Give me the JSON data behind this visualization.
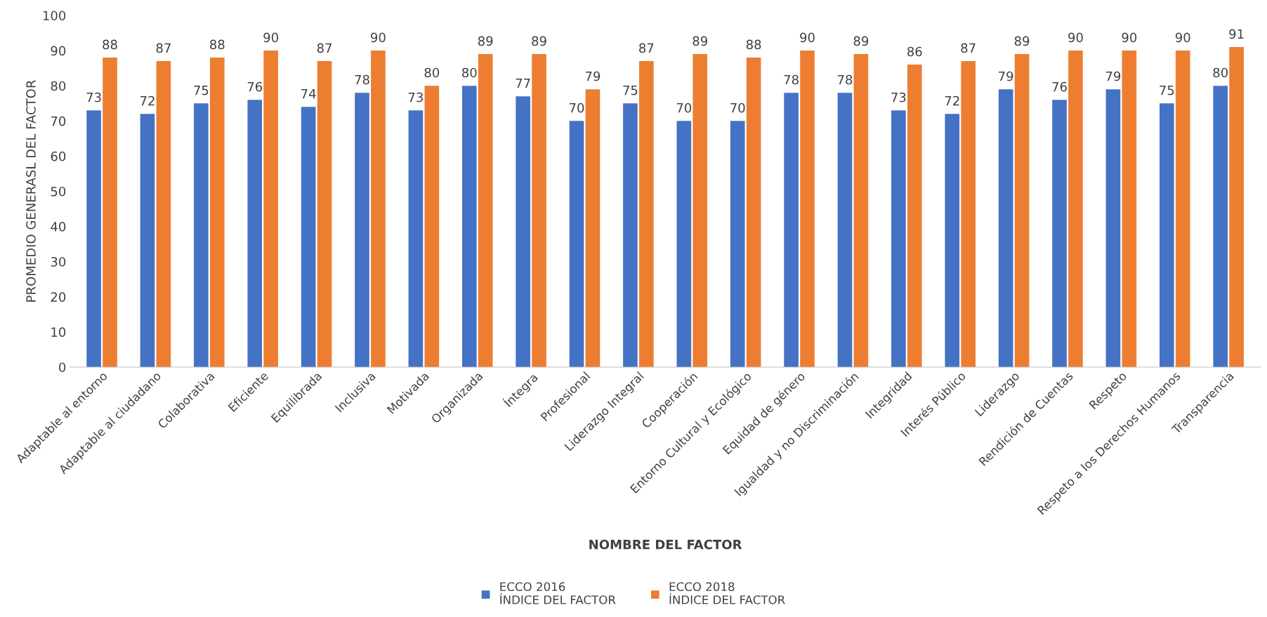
{
  "chart_data": {
    "type": "bar",
    "xlabel": "NOMBRE DEL FACTOR",
    "ylabel": "PROMEDIO GENERASL DEL FACTOR",
    "categories": [
      "Adaptable al entorno",
      "Adaptable al ciudadano",
      "Colaborativa",
      "Eficiente",
      "Equilibrada",
      "Inclusiva",
      "Motivada",
      "Organizada",
      "Íntegra",
      "Profesional",
      "Liderazgo Integral",
      "Cooperación",
      "Entorno Cultural y Ecológico",
      "Equidad de género",
      "Igualdad y no Discriminación",
      "Integridad",
      "Interés Público",
      "Liderazgo",
      "Rendición de Cuentas",
      "Respeto",
      "Respeto a los Derechos Humanos",
      "Transparencia"
    ],
    "series": [
      {
        "name": "ECCO 2016\nÍNDICE DEL FACTOR",
        "color": "#4472c4",
        "values": [
          73,
          72,
          75,
          76,
          74,
          78,
          73,
          80,
          77,
          70,
          75,
          70,
          70,
          78,
          78,
          73,
          72,
          79,
          76,
          79,
          75,
          80
        ]
      },
      {
        "name": "ECCO 2018\nÍNDICE DEL FACTOR",
        "color": "#ed7d31",
        "values": [
          88,
          87,
          88,
          90,
          87,
          90,
          80,
          89,
          89,
          79,
          87,
          89,
          88,
          90,
          89,
          86,
          87,
          89,
          90,
          90,
          90,
          91
        ]
      }
    ],
    "ylim": [
      0,
      100
    ],
    "yticks": [
      0,
      10,
      20,
      30,
      40,
      50,
      60,
      70,
      80,
      90,
      100
    ],
    "data_labels": true,
    "grid": false,
    "legend": "bottom"
  }
}
